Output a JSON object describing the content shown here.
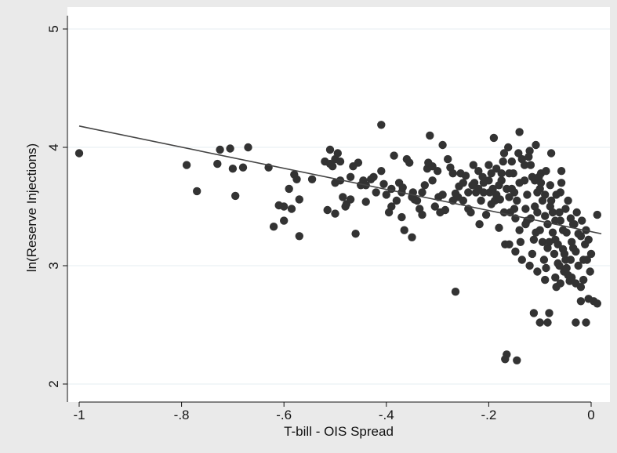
{
  "chart_data": {
    "type": "scatter",
    "title": "",
    "xlabel": "T-bill - OIS Spread",
    "ylabel": "ln(Reserve Injections)",
    "xlim": [
      -1.0,
      0.0
    ],
    "ylim": [
      2,
      5
    ],
    "xticks": [
      -1,
      -0.8,
      -0.6,
      -0.4,
      -0.2,
      0
    ],
    "xtick_labels": [
      "-1",
      "-.8",
      "-.6",
      "-.4",
      "-.2",
      "0"
    ],
    "yticks": [
      2,
      3,
      4,
      5
    ],
    "ytick_labels": [
      "2",
      "3",
      "4",
      "5"
    ],
    "grid": "horizontal",
    "colors": {
      "points": "#333333",
      "fit_line": "#444444",
      "plot_bg": "#ffffff",
      "outer_bg": "#eaeaea",
      "grid": "#e6ecf0"
    },
    "fit_line": {
      "x": [
        -1.0,
        0.02
      ],
      "y": [
        4.18,
        3.27
      ]
    },
    "series": [
      {
        "points": [
          [
            -1.0,
            3.95
          ],
          [
            -0.79,
            3.85
          ],
          [
            -0.77,
            3.63
          ],
          [
            -0.73,
            3.86
          ],
          [
            -0.725,
            3.98
          ],
          [
            -0.705,
            3.99
          ],
          [
            -0.7,
            3.82
          ],
          [
            -0.695,
            3.59
          ],
          [
            -0.68,
            3.83
          ],
          [
            -0.67,
            4.0
          ],
          [
            -0.63,
            3.83
          ],
          [
            -0.62,
            3.33
          ],
          [
            -0.61,
            3.51
          ],
          [
            -0.6,
            3.5
          ],
          [
            -0.6,
            3.38
          ],
          [
            -0.59,
            3.65
          ],
          [
            -0.585,
            3.48
          ],
          [
            -0.58,
            3.77
          ],
          [
            -0.575,
            3.73
          ],
          [
            -0.57,
            3.56
          ],
          [
            -0.57,
            3.25
          ],
          [
            -0.545,
            3.73
          ],
          [
            -0.52,
            3.88
          ],
          [
            -0.515,
            3.47
          ],
          [
            -0.51,
            3.98
          ],
          [
            -0.505,
            3.84
          ],
          [
            -0.5,
            3.9
          ],
          [
            -0.5,
            3.7
          ],
          [
            -0.5,
            3.44
          ],
          [
            -0.495,
            3.95
          ],
          [
            -0.49,
            3.88
          ],
          [
            -0.485,
            3.58
          ],
          [
            -0.48,
            3.5
          ],
          [
            -0.478,
            3.52
          ],
          [
            -0.47,
            3.75
          ],
          [
            -0.465,
            3.84
          ],
          [
            -0.46,
            3.27
          ],
          [
            -0.455,
            3.87
          ],
          [
            -0.45,
            3.68
          ],
          [
            -0.445,
            3.72
          ],
          [
            -0.44,
            3.54
          ],
          [
            -0.43,
            3.73
          ],
          [
            -0.425,
            3.75
          ],
          [
            -0.41,
            3.8
          ],
          [
            -0.41,
            4.19
          ],
          [
            -0.405,
            3.69
          ],
          [
            -0.4,
            3.6
          ],
          [
            -0.395,
            3.45
          ],
          [
            -0.39,
            3.65
          ],
          [
            -0.385,
            3.93
          ],
          [
            -0.38,
            3.55
          ],
          [
            -0.375,
            3.7
          ],
          [
            -0.37,
            3.41
          ],
          [
            -0.368,
            3.66
          ],
          [
            -0.365,
            3.3
          ],
          [
            -0.36,
            3.9
          ],
          [
            -0.355,
            3.87
          ],
          [
            -0.35,
            3.24
          ],
          [
            -0.348,
            3.62
          ],
          [
            -0.345,
            3.56
          ],
          [
            -0.34,
            3.55
          ],
          [
            -0.335,
            3.48
          ],
          [
            -0.33,
            3.43
          ],
          [
            -0.325,
            3.68
          ],
          [
            -0.32,
            3.82
          ],
          [
            -0.318,
            3.87
          ],
          [
            -0.315,
            4.1
          ],
          [
            -0.31,
            3.84
          ],
          [
            -0.305,
            3.5
          ],
          [
            -0.3,
            3.8
          ],
          [
            -0.298,
            3.58
          ],
          [
            -0.295,
            3.45
          ],
          [
            -0.29,
            4.02
          ],
          [
            -0.285,
            3.47
          ],
          [
            -0.28,
            3.9
          ],
          [
            -0.275,
            3.83
          ],
          [
            -0.27,
            3.78
          ],
          [
            -0.265,
            3.61
          ],
          [
            -0.26,
            3.58
          ],
          [
            -0.258,
            3.67
          ],
          [
            -0.255,
            3.78
          ],
          [
            -0.25,
            3.55
          ],
          [
            -0.245,
            3.76
          ],
          [
            -0.24,
            3.48
          ],
          [
            -0.235,
            3.45
          ],
          [
            -0.23,
            3.85
          ],
          [
            -0.228,
            3.7
          ],
          [
            -0.225,
            3.62
          ],
          [
            -0.22,
            3.8
          ],
          [
            -0.218,
            3.35
          ],
          [
            -0.215,
            3.55
          ],
          [
            -0.21,
            3.7
          ],
          [
            -0.205,
            3.43
          ],
          [
            -0.2,
            3.85
          ],
          [
            -0.198,
            3.62
          ],
          [
            -0.195,
            3.78
          ],
          [
            -0.19,
            4.08
          ],
          [
            -0.188,
            3.55
          ],
          [
            -0.185,
            3.82
          ],
          [
            -0.18,
            3.32
          ],
          [
            -0.178,
            3.56
          ],
          [
            -0.175,
            3.72
          ],
          [
            -0.17,
            3.95
          ],
          [
            -0.168,
            3.18
          ],
          [
            -0.165,
            3.65
          ],
          [
            -0.16,
            3.78
          ],
          [
            -0.158,
            3.45
          ],
          [
            -0.155,
            3.88
          ],
          [
            -0.15,
            3.62
          ],
          [
            -0.148,
            3.12
          ],
          [
            -0.145,
            3.55
          ],
          [
            -0.14,
            4.13
          ],
          [
            -0.138,
            3.2
          ],
          [
            -0.135,
            3.9
          ],
          [
            -0.13,
            3.72
          ],
          [
            -0.128,
            3.48
          ],
          [
            -0.125,
            3.6
          ],
          [
            -0.12,
            3.97
          ],
          [
            -0.118,
            3.4
          ],
          [
            -0.115,
            3.75
          ],
          [
            -0.11,
            3.5
          ],
          [
            -0.108,
            4.02
          ],
          [
            -0.105,
            3.62
          ],
          [
            -0.1,
            3.3
          ],
          [
            -0.098,
            3.78
          ],
          [
            -0.095,
            3.55
          ],
          [
            -0.09,
            3.42
          ],
          [
            -0.088,
            3.8
          ],
          [
            -0.085,
            3.15
          ],
          [
            -0.08,
            3.68
          ],
          [
            -0.078,
            3.95
          ],
          [
            -0.075,
            3.45
          ],
          [
            -0.07,
            3.22
          ],
          [
            -0.068,
            3.6
          ],
          [
            -0.065,
            3.02
          ],
          [
            -0.06,
            3.38
          ],
          [
            -0.058,
            3.7
          ],
          [
            -0.055,
            3.14
          ],
          [
            -0.05,
            3.48
          ],
          [
            -0.048,
            3.28
          ],
          [
            -0.045,
            3.55
          ],
          [
            -0.04,
            3.05
          ],
          [
            -0.038,
            3.2
          ],
          [
            -0.035,
            3.35
          ],
          [
            -0.03,
            3.12
          ],
          [
            -0.028,
            3.45
          ],
          [
            -0.025,
            3.0
          ],
          [
            -0.02,
            3.25
          ],
          [
            -0.018,
            3.38
          ],
          [
            -0.015,
            2.88
          ],
          [
            -0.012,
            3.18
          ],
          [
            -0.01,
            3.3
          ],
          [
            -0.008,
            3.05
          ],
          [
            -0.005,
            3.22
          ],
          [
            -0.002,
            2.95
          ],
          [
            0.0,
            3.1
          ],
          [
            0.012,
            3.43
          ],
          [
            0.005,
            2.7
          ],
          [
            0.012,
            2.68
          ],
          [
            -0.005,
            2.72
          ],
          [
            -0.02,
            2.7
          ],
          [
            -0.03,
            2.52
          ],
          [
            -0.01,
            2.52
          ],
          [
            -0.085,
            2.52
          ],
          [
            -0.1,
            2.52
          ],
          [
            -0.112,
            2.6
          ],
          [
            -0.082,
            2.6
          ],
          [
            -0.165,
            2.25
          ],
          [
            -0.168,
            2.21
          ],
          [
            -0.145,
            2.2
          ],
          [
            -0.265,
            2.78
          ],
          [
            -0.06,
            2.85
          ],
          [
            -0.07,
            2.9
          ],
          [
            -0.09,
            2.88
          ],
          [
            -0.105,
            2.95
          ],
          [
            -0.12,
            3.0
          ],
          [
            -0.03,
            2.85
          ],
          [
            -0.045,
            2.92
          ],
          [
            -0.02,
            2.82
          ],
          [
            -0.16,
            3.18
          ],
          [
            -0.17,
            3.45
          ],
          [
            -0.185,
            3.6
          ],
          [
            -0.135,
            3.05
          ],
          [
            -0.115,
            3.1
          ],
          [
            -0.095,
            3.2
          ],
          [
            -0.075,
            3.28
          ],
          [
            -0.05,
            3.05
          ],
          [
            -0.04,
            3.4
          ],
          [
            -0.06,
            3.62
          ],
          [
            -0.08,
            3.5
          ],
          [
            -0.1,
            3.65
          ],
          [
            -0.125,
            3.38
          ],
          [
            -0.14,
            3.3
          ],
          [
            -0.155,
            3.65
          ],
          [
            -0.175,
            3.78
          ],
          [
            -0.195,
            3.52
          ],
          [
            -0.21,
            3.62
          ],
          [
            -0.15,
            3.48
          ],
          [
            -0.13,
            3.85
          ],
          [
            -0.11,
            3.72
          ],
          [
            -0.09,
            3.6
          ],
          [
            -0.07,
            3.38
          ],
          [
            -0.055,
            3.3
          ],
          [
            -0.035,
            3.15
          ],
          [
            -0.025,
            3.27
          ],
          [
            -0.015,
            3.05
          ],
          [
            -0.065,
            3.18
          ],
          [
            -0.085,
            3.35
          ],
          [
            -0.105,
            3.45
          ],
          [
            -0.14,
            3.7
          ],
          [
            -0.16,
            3.58
          ],
          [
            -0.18,
            3.68
          ],
          [
            -0.2,
            3.72
          ],
          [
            -0.22,
            3.65
          ],
          [
            -0.24,
            3.62
          ],
          [
            -0.25,
            3.7
          ],
          [
            -0.27,
            3.55
          ],
          [
            -0.29,
            3.6
          ],
          [
            -0.31,
            3.72
          ],
          [
            -0.33,
            3.62
          ],
          [
            -0.35,
            3.58
          ],
          [
            -0.37,
            3.62
          ],
          [
            -0.39,
            3.5
          ],
          [
            -0.42,
            3.62
          ],
          [
            -0.44,
            3.68
          ],
          [
            -0.47,
            3.56
          ],
          [
            -0.49,
            3.72
          ],
          [
            -0.51,
            3.86
          ],
          [
            -0.053,
            2.95
          ],
          [
            -0.042,
            2.87
          ],
          [
            -0.072,
            3.1
          ],
          [
            -0.092,
            3.05
          ],
          [
            -0.112,
            3.22
          ],
          [
            -0.062,
            3.45
          ],
          [
            -0.038,
            2.9
          ],
          [
            -0.118,
            3.85
          ],
          [
            -0.098,
            3.7
          ],
          [
            -0.078,
            3.55
          ],
          [
            -0.058,
            3.8
          ],
          [
            -0.033,
            3.35
          ],
          [
            -0.048,
            2.98
          ],
          [
            -0.068,
            2.82
          ],
          [
            -0.088,
            2.98
          ],
          [
            -0.108,
            3.28
          ],
          [
            -0.128,
            3.35
          ],
          [
            -0.148,
            3.4
          ],
          [
            -0.152,
            3.78
          ],
          [
            -0.172,
            3.88
          ],
          [
            -0.192,
            3.65
          ],
          [
            -0.212,
            3.75
          ],
          [
            -0.232,
            3.68
          ],
          [
            -0.162,
            4.0
          ],
          [
            -0.142,
            3.95
          ],
          [
            -0.122,
            3.92
          ],
          [
            -0.102,
            3.75
          ],
          [
            -0.082,
            3.2
          ],
          [
            -0.062,
            3.0
          ],
          [
            -0.052,
            3.1
          ]
        ]
      }
    ]
  }
}
